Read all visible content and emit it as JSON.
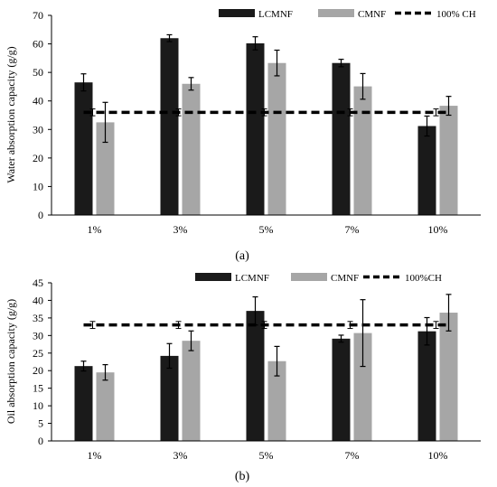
{
  "chart_data": [
    {
      "type": "bar",
      "caption": "(a)",
      "ylabel": "Water absorption capacity (g/g)",
      "xlabel": "",
      "ylim": [
        0,
        70
      ],
      "yticks": [
        0,
        10,
        20,
        30,
        40,
        50,
        60,
        70
      ],
      "categories": [
        "1%",
        "3%",
        "5%",
        "7%",
        "10%"
      ],
      "series": [
        {
          "name": "LCMNF",
          "color": "#1a1a1a",
          "values": [
            46.5,
            62.0,
            60.2,
            53.3,
            31.2
          ],
          "errors": [
            3.0,
            1.2,
            2.3,
            1.3,
            3.5
          ]
        },
        {
          "name": "CMNF",
          "color": "#a6a6a6",
          "values": [
            32.5,
            46.0,
            53.3,
            45.1,
            38.3
          ],
          "errors": [
            7.0,
            2.2,
            4.5,
            4.5,
            3.3
          ]
        }
      ],
      "reference_line": {
        "name": "100% CH",
        "value": 36.0,
        "error": 1.2,
        "style": "dashed",
        "color": "#000000"
      },
      "legend_position": "top-right",
      "grid": false
    },
    {
      "type": "bar",
      "caption": "(b)",
      "ylabel": "Oil absorption capacity (g/g)",
      "xlabel": "",
      "ylim": [
        0,
        45
      ],
      "yticks": [
        0,
        5,
        10,
        15,
        20,
        25,
        30,
        35,
        40,
        45
      ],
      "categories": [
        "1%",
        "3%",
        "5%",
        "7%",
        "10%"
      ],
      "series": [
        {
          "name": "LCMNF",
          "color": "#1a1a1a",
          "values": [
            21.3,
            24.2,
            37.0,
            29.1,
            31.2
          ],
          "errors": [
            1.4,
            3.5,
            4.0,
            1.0,
            3.9
          ]
        },
        {
          "name": "CMNF",
          "color": "#a6a6a6",
          "values": [
            19.5,
            28.5,
            22.7,
            30.7,
            36.5
          ],
          "errors": [
            2.2,
            2.8,
            4.2,
            9.5,
            5.2
          ]
        }
      ],
      "reference_line": {
        "name": "100%CH",
        "value": 33.0,
        "error": 1.0,
        "style": "dashed",
        "color": "#000000"
      },
      "legend_position": "top",
      "grid": false
    }
  ]
}
